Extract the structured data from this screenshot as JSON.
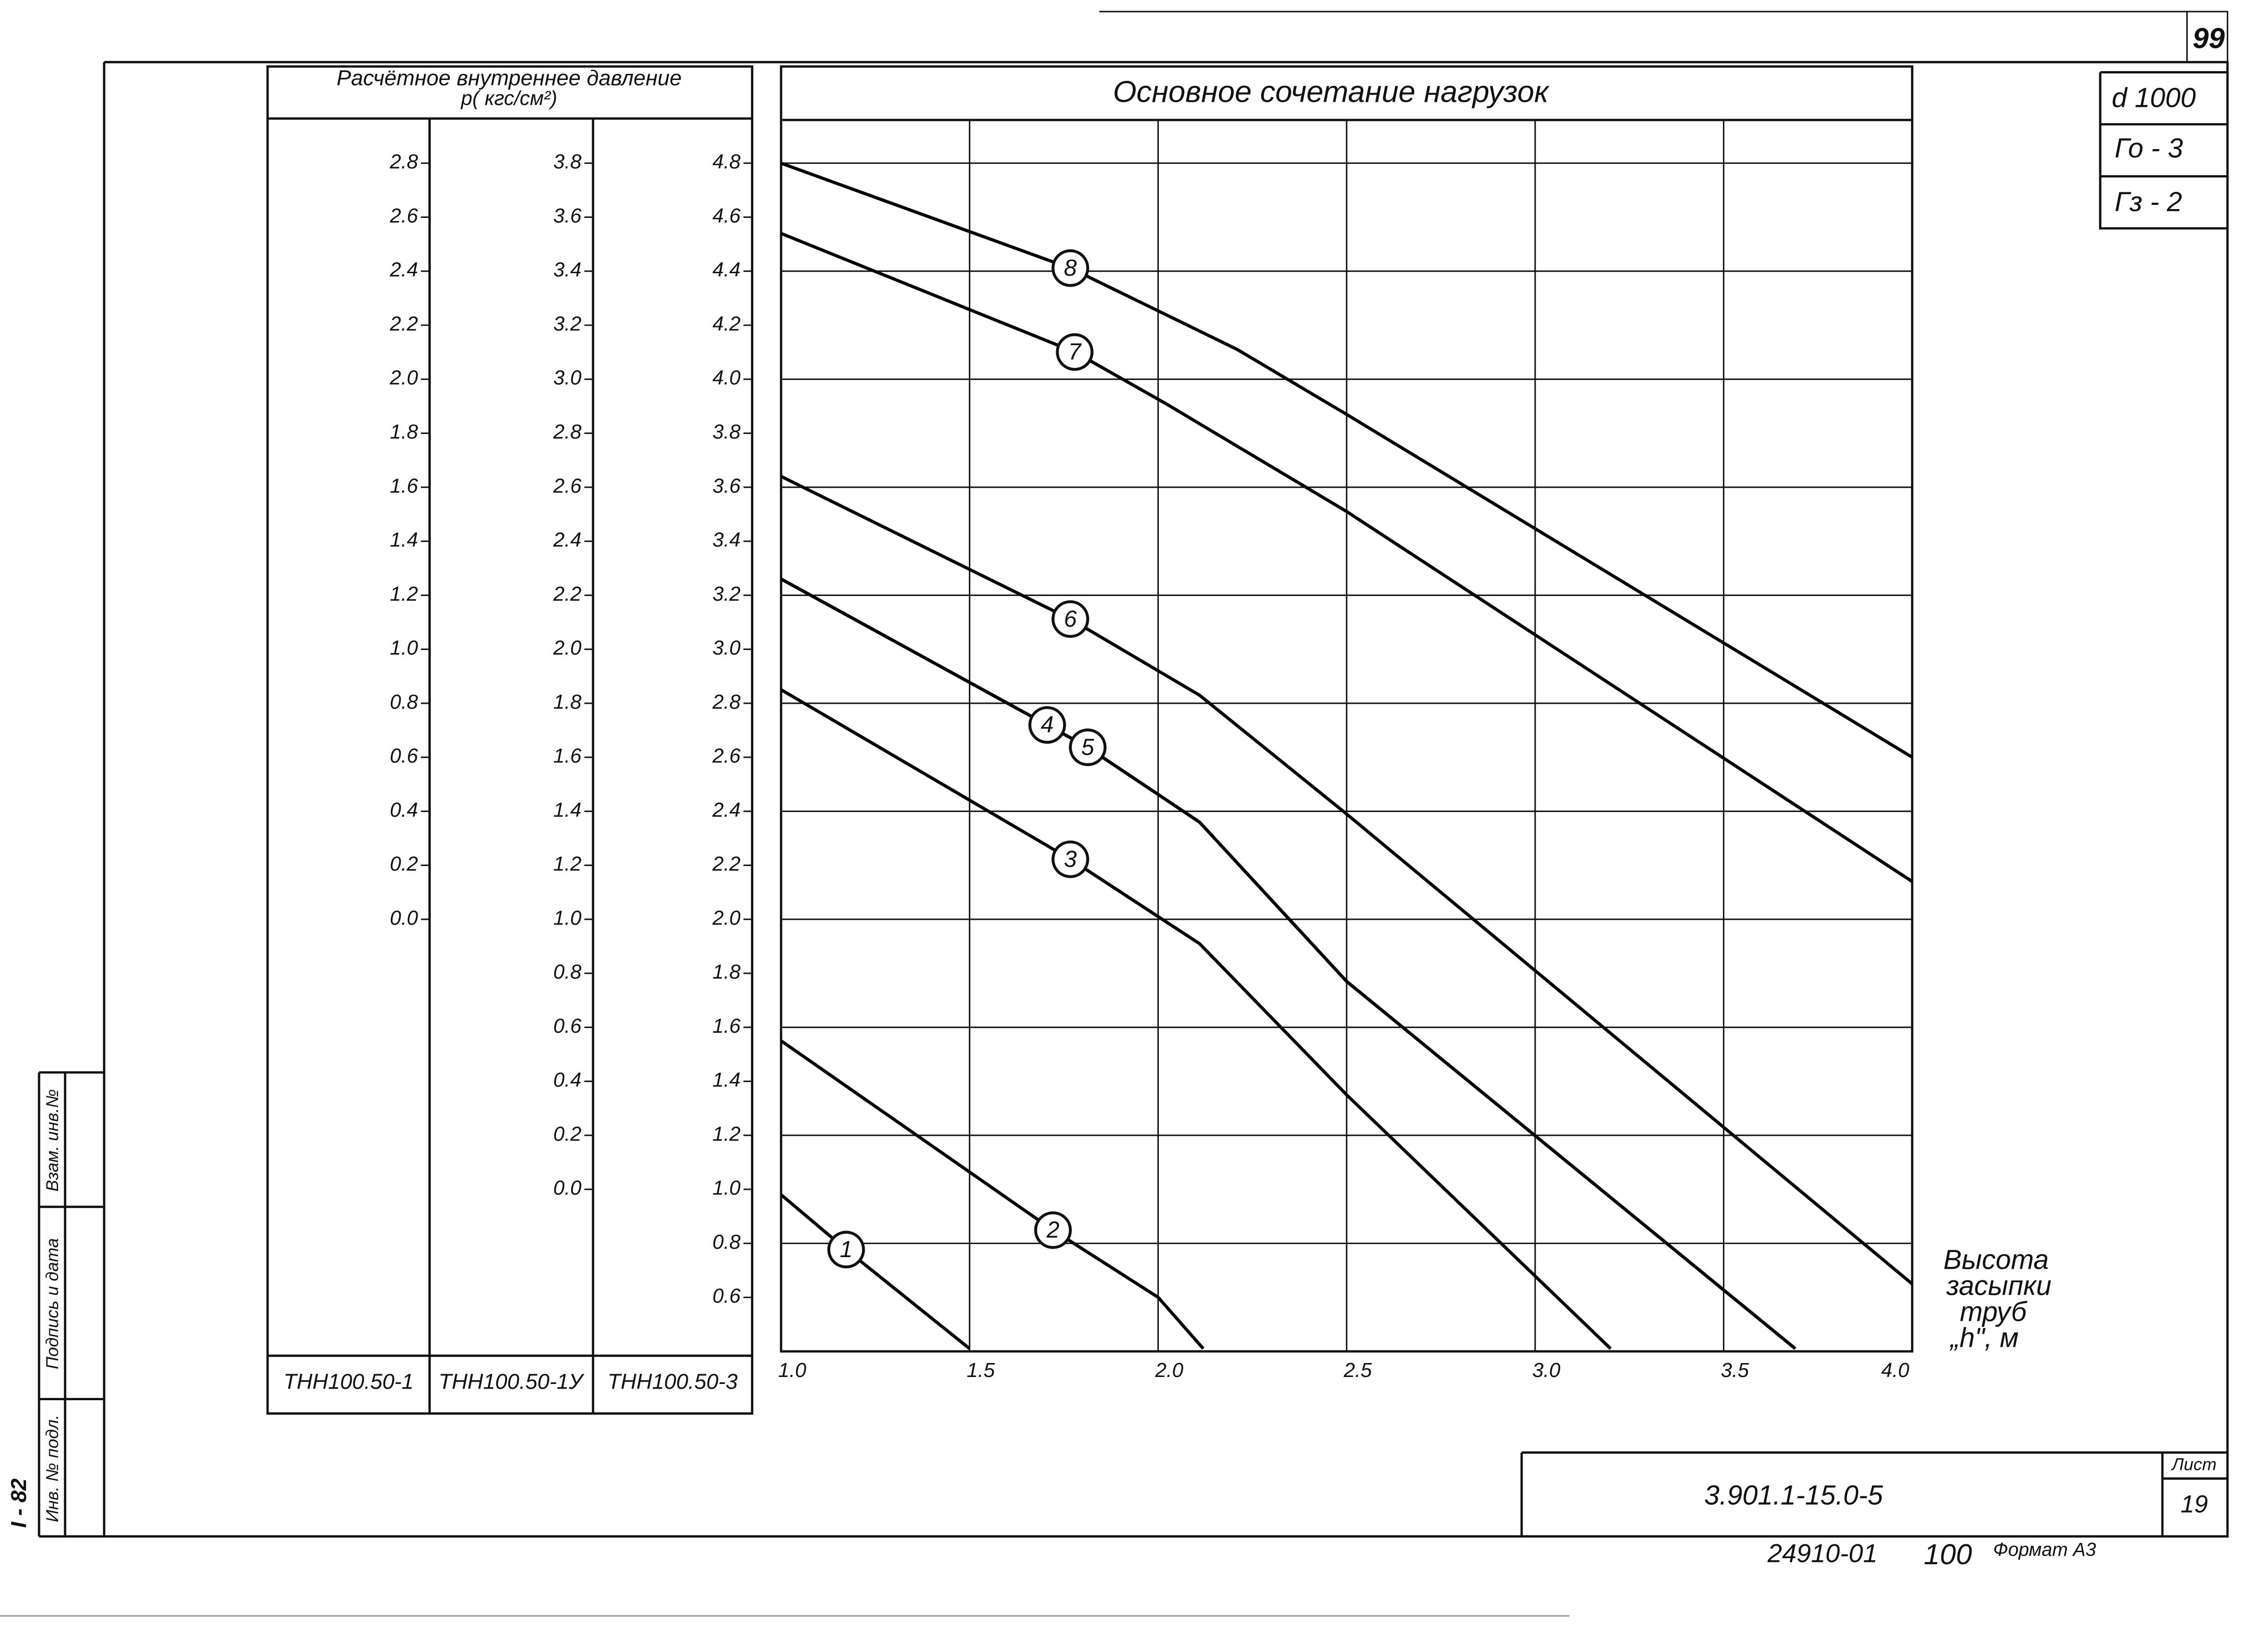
{
  "chart_data": {
    "type": "line",
    "title": "Основное сочетание нагрузок",
    "y_label": [
      "Расчётное внутреннее давление",
      "p( кгс/см²)"
    ],
    "x_label": [
      "Высота",
      "засыпки",
      "труб",
      "„h\", м"
    ],
    "xlim": [
      1,
      4
    ],
    "xticks": [
      {
        "value": 1,
        "label": "1.0"
      },
      1.5,
      {
        "value": 2,
        "label": "2.0"
      },
      2.5,
      {
        "value": 3,
        "label": "3.0"
      },
      3.5,
      {
        "value": 4,
        "label": "4.0"
      }
    ],
    "grid": true,
    "y_axes": [
      {
        "name": "ТНН100.50-1",
        "ylim": [
          -1.6,
          2.96
        ],
        "yticks": [
          {
            "value": 0,
            "label": "0.0"
          },
          0.2,
          0.4,
          0.6,
          0.8,
          {
            "value": 1,
            "label": "1.0"
          },
          1.2,
          1.4,
          1.6,
          1.8,
          {
            "value": 2,
            "label": "2.0"
          },
          2.2,
          2.4,
          2.6,
          2.8
        ]
      },
      {
        "name": "ТНН100.50-1У",
        "ylim": [
          -0.6,
          3.96
        ],
        "yticks": [
          {
            "value": 0,
            "label": "0.0"
          },
          0.2,
          0.4,
          0.6,
          0.8,
          {
            "value": 1,
            "label": "1.0"
          },
          1.2,
          1.4,
          1.6,
          1.8,
          {
            "value": 2,
            "label": "2.0"
          },
          2.2,
          2.4,
          2.6,
          2.8,
          {
            "value": 3,
            "label": "3.0"
          },
          3.2,
          3.4,
          3.6,
          3.8
        ]
      },
      {
        "name": "ТНН100.50-3",
        "ylim": [
          0.4,
          4.96
        ],
        "yticks": [
          0.6,
          0.8,
          {
            "value": 1,
            "label": "1.0"
          },
          1.2,
          1.4,
          1.6,
          1.8,
          {
            "value": 2,
            "label": "2.0"
          },
          2.2,
          2.4,
          2.6,
          2.8,
          {
            "value": 3,
            "label": "3.0"
          },
          3.2,
          3.4,
          3.6,
          3.8,
          {
            "value": 4,
            "label": "4.0"
          },
          4.2,
          4.4,
          4.6,
          4.8
        ]
      }
    ],
    "series": [
      {
        "name": "1",
        "color": "#000000",
        "x": [
          1.0,
          1.17,
          1.5
        ],
        "values": [
          0.98,
          0.78,
          0.41
        ]
      },
      {
        "name": "2",
        "color": "#000000",
        "x": [
          1.0,
          1.72,
          2.0,
          2.12
        ],
        "values": [
          1.55,
          0.85,
          0.6,
          0.41
        ]
      },
      {
        "name": "3",
        "color": "#000000",
        "x": [
          1.0,
          1.77,
          2.11,
          2.5,
          3.2
        ],
        "values": [
          2.85,
          2.22,
          1.91,
          1.35,
          0.41
        ]
      },
      {
        "name": "4",
        "color": "#000000",
        "x": [
          1.0,
          1.81,
          2.11,
          2.5,
          3.69
        ],
        "values": [
          3.26,
          2.64,
          2.36,
          1.77,
          0.41
        ]
      },
      {
        "name": "5",
        "color": "#000000",
        "x": [
          1.0,
          1.81,
          2.11,
          2.5,
          3.69
        ],
        "values": [
          3.26,
          2.64,
          2.36,
          1.77,
          0.41
        ]
      },
      {
        "name": "6",
        "color": "#000000",
        "x": [
          1.0,
          1.77,
          2.11,
          2.5,
          4.0
        ],
        "values": [
          3.64,
          3.11,
          2.83,
          2.39,
          0.65
        ]
      },
      {
        "name": "7",
        "color": "#000000",
        "x": [
          1.0,
          1.78,
          2.02,
          2.5,
          4.0
        ],
        "values": [
          4.54,
          4.1,
          3.91,
          3.51,
          2.14
        ]
      },
      {
        "name": "8",
        "color": "#000000",
        "x": [
          1.0,
          1.77,
          2.21,
          2.5,
          4.0
        ],
        "values": [
          4.8,
          4.41,
          4.11,
          3.87,
          2.6
        ]
      }
    ]
  },
  "sheet": {
    "page_number": "99",
    "params": [
      "d 1000",
      "Го - 3",
      "Гз - 2"
    ],
    "code": "3.901.1-15.0-5",
    "sheet_label": "Лист",
    "sheet_number": "19",
    "inventory": "24910-01",
    "copy": "100",
    "format": "Формат А3",
    "side_mark": "I - 82",
    "stamp": [
      "Инв. № подл.",
      "Подпись и дата",
      "Взам. инв.№"
    ]
  }
}
